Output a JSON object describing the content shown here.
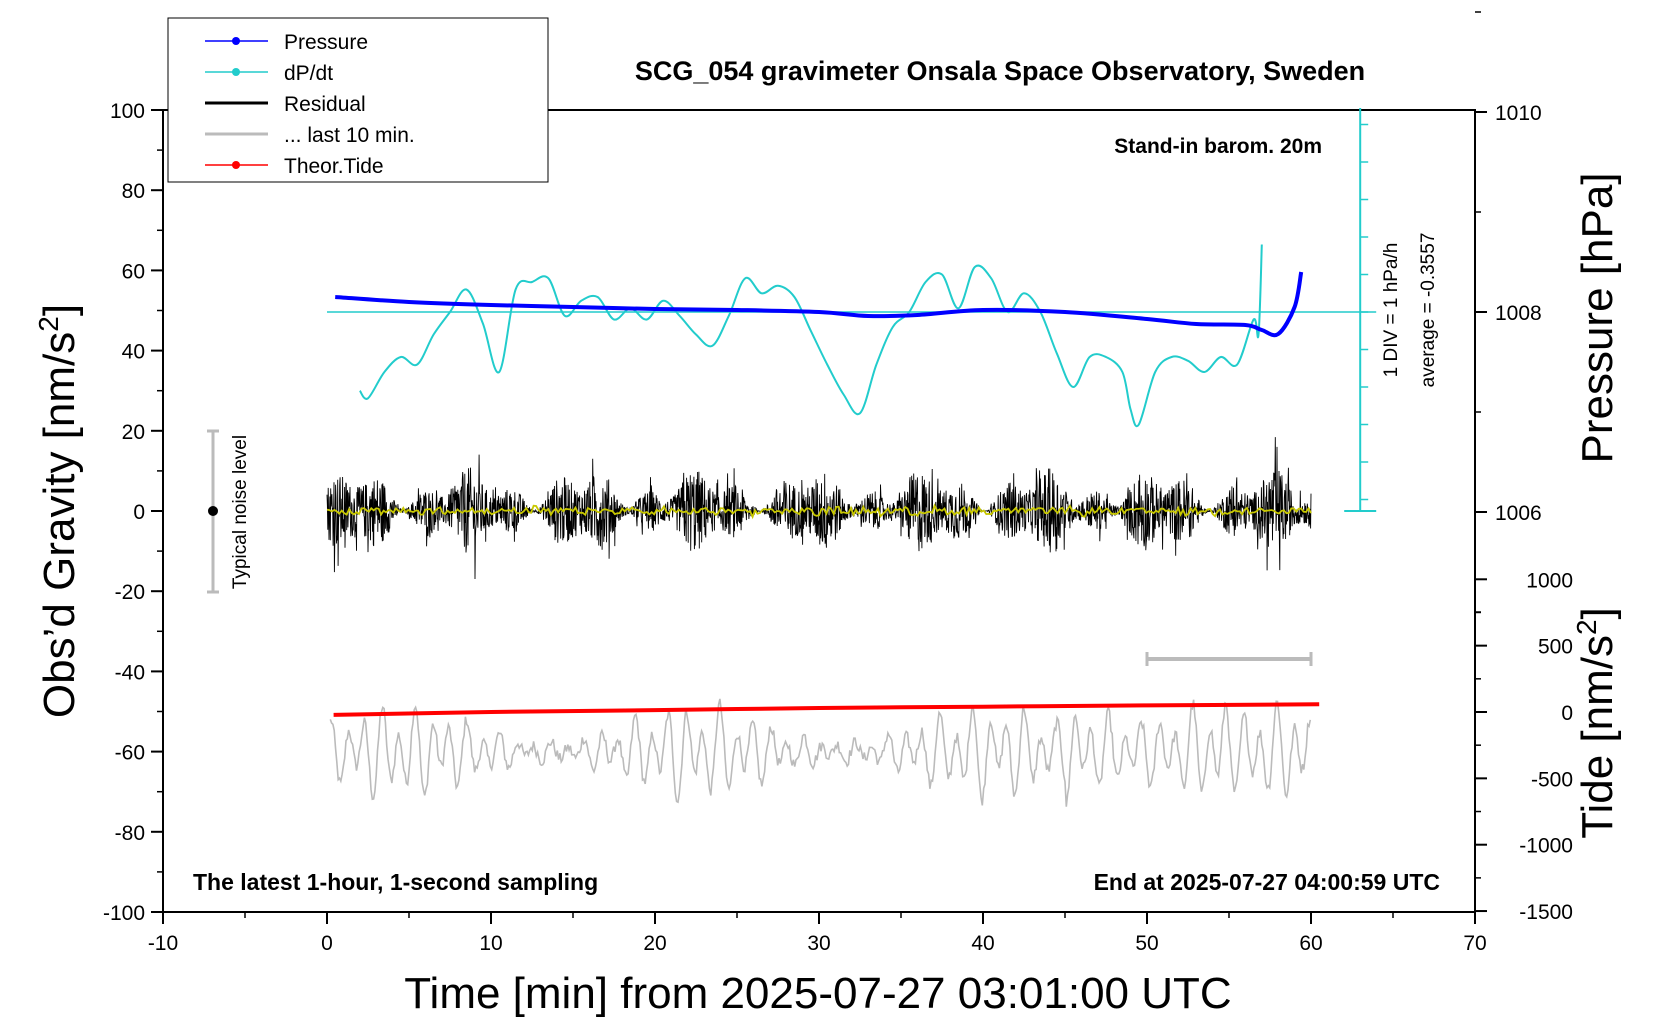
{
  "chart_data": {
    "type": "line",
    "title": "SCG_054 gravimeter Onsala Space Observatory, Sweden",
    "xlabel": "Time [min] from 2025-07-27 03:01:00 UTC",
    "ylabel_left": "Obs’d Gravity [nm/s",
    "ylabel_left_sup": "2",
    "ylabel_left_close": "]",
    "ylabel_right_pressure": "Pressure [hPa]",
    "ylabel_right_tide": "Tide [nm/s",
    "ylabel_right_tide_sup": "2",
    "ylabel_right_tide_close": "]",
    "xlim": [
      -10,
      70
    ],
    "ylim": [
      -100,
      100
    ],
    "x_ticks": [
      "-10",
      "0",
      "10",
      "20",
      "30",
      "40",
      "50",
      "60",
      "70"
    ],
    "y_ticks": [
      "100",
      "80",
      "60",
      "40",
      "20",
      "0",
      "-20",
      "-40",
      "-60",
      "-80",
      "-100"
    ],
    "pressure_ticks": [
      "1010",
      "1008",
      "1006"
    ],
    "tide_ticks": [
      "1000",
      "500",
      "0",
      "-500",
      "-1000",
      "-1500"
    ],
    "pressure_range_hpa": [
      1004,
      1012
    ],
    "tide_range_nms2": [
      -1500,
      1500
    ],
    "legend_position": "top-left",
    "legend": [
      {
        "name": "Pressure",
        "color": "#0000ff",
        "marker": "dot"
      },
      {
        "name": "dP/dt",
        "color": "#22cccc",
        "marker": "dot"
      },
      {
        "name": "Residual",
        "color": "#000000",
        "marker": "none"
      },
      {
        "name": "... last 10 min.",
        "color": "#bbbbbb",
        "marker": "none"
      },
      {
        "name": "Theor.Tide",
        "color": "#ff0000",
        "marker": "dot"
      }
    ],
    "annotations": {
      "stand_in": "Stand-in barom. 20m",
      "div_label": "1 DIV = 1 hPa/h",
      "average": "average = -0.3557",
      "noise": "Typical noise level",
      "latest": "The latest 1-hour, 1-second sampling",
      "end": "End at 2025-07-27 04:00:59 UTC"
    },
    "series": [
      {
        "name": "Pressure",
        "color": "#0000ff",
        "unit": "hPa",
        "x": [
          0.5,
          5,
          10,
          15,
          20,
          25,
          30,
          33,
          36,
          40,
          45,
          50,
          53,
          56,
          57,
          58,
          59,
          59.4
        ],
        "values": [
          1008.15,
          1008.1,
          1008.07,
          1008.05,
          1008.03,
          1008.02,
          1008.0,
          1007.96,
          1007.97,
          1008.02,
          1008.0,
          1007.93,
          1007.88,
          1007.87,
          1007.82,
          1007.78,
          1008.05,
          1008.4
        ]
      },
      {
        "name": "dP/dt",
        "color": "#22cccc",
        "unit": "div",
        "x": [
          2,
          2.5,
          3.5,
          4.5,
          5.5,
          6.5,
          7.5,
          8.5,
          9.5,
          10.5,
          11.5,
          12.5,
          13.5,
          14.5,
          15.5,
          16.5,
          17.5,
          18.5,
          19.5,
          20.5,
          21.5,
          22.5,
          23.5,
          24.5,
          25.5,
          26.5,
          27.5,
          28.5,
          29.5,
          30.5,
          31.5,
          32.5,
          33.5,
          34.5,
          35.5,
          36.5,
          37.5,
          38.5,
          39.5,
          40.5,
          41.5,
          42.5,
          43.5,
          44.5,
          45.5,
          46.5,
          47.5,
          48.5,
          49,
          49.5,
          50.5,
          51.5,
          52.5,
          53.5,
          54.5,
          55.5,
          56.5,
          56.8,
          57
        ],
        "values": [
          -2.1,
          -2.3,
          -1.6,
          -1.2,
          -1.4,
          -0.6,
          0.0,
          0.6,
          -0.3,
          -1.6,
          0.6,
          0.8,
          0.9,
          -0.1,
          0.3,
          0.4,
          -0.2,
          0.1,
          -0.2,
          0.3,
          -0.1,
          -0.6,
          -0.9,
          -0.1,
          0.9,
          0.5,
          0.7,
          0.4,
          -0.5,
          -1.4,
          -2.2,
          -2.7,
          -1.4,
          -0.4,
          0.0,
          0.8,
          1.0,
          0.1,
          1.2,
          0.9,
          0.0,
          0.5,
          0.0,
          -1.1,
          -2.0,
          -1.2,
          -1.2,
          -1.6,
          -2.6,
          -3.0,
          -1.6,
          -1.2,
          -1.3,
          -1.6,
          -1.2,
          -1.4,
          -0.2,
          -0.6,
          1.8
        ]
      },
      {
        "name": "Residual",
        "color": "#000000",
        "unit": "nm/s2",
        "x_range": [
          0,
          60
        ],
        "amplitude": 10
      },
      {
        "name": "... last 10 min.",
        "color": "#bbbbbb",
        "unit": "nm/s2",
        "x_range": [
          0.2,
          60
        ],
        "center": -60,
        "amplitude": 12
      },
      {
        "name": "Theor.Tide",
        "color": "#ff0000",
        "unit": "nm/s2",
        "x": [
          0.4,
          10,
          20,
          30,
          40,
          50,
          60.5
        ],
        "values": [
          -22,
          0,
          14,
          30,
          40,
          50,
          58
        ]
      }
    ],
    "interval_bar_x": [
      50,
      60
    ]
  }
}
